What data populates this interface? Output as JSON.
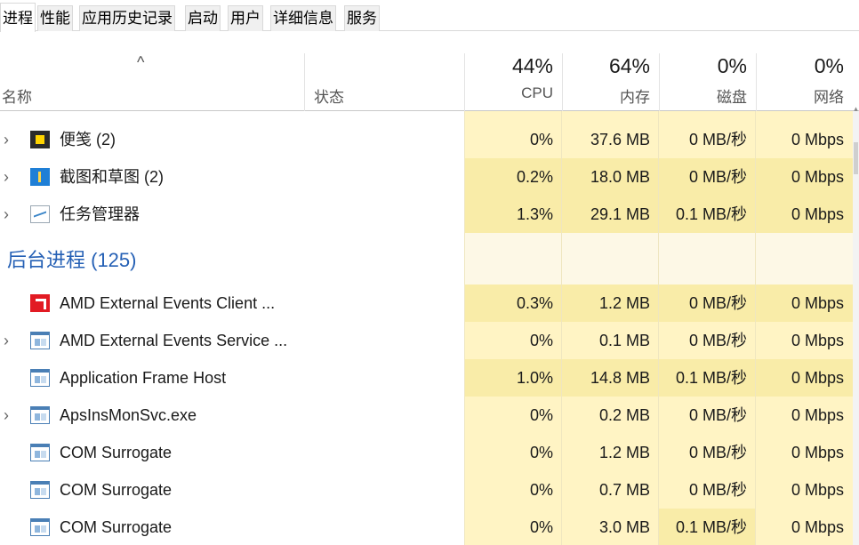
{
  "tabs": [
    {
      "label": "进程",
      "active": true
    },
    {
      "label": "性能",
      "active": false
    },
    {
      "label": "应用历史记录",
      "active": false
    },
    {
      "label": "启动",
      "active": false
    },
    {
      "label": "用户",
      "active": false
    },
    {
      "label": "详细信息",
      "active": false
    },
    {
      "label": "服务",
      "active": false
    }
  ],
  "header": {
    "sort_indicator": "^",
    "name_label": "名称",
    "status_label": "状态",
    "cpu": {
      "pct": "44%",
      "label": "CPU"
    },
    "memory": {
      "pct": "64%",
      "label": "内存"
    },
    "disk": {
      "pct": "0%",
      "label": "磁盘"
    },
    "network": {
      "pct": "0%",
      "label": "网络"
    }
  },
  "apps": [
    {
      "name": "便笺 (2)",
      "icon": "sticky-notes-icon",
      "expandable": true,
      "cpu": "0%",
      "memory": "37.6 MB",
      "disk": "0 MB/秒",
      "network": "0 Mbps"
    },
    {
      "name": "截图和草图 (2)",
      "icon": "snip-sketch-icon",
      "expandable": true,
      "cpu": "0.2%",
      "memory": "18.0 MB",
      "disk": "0 MB/秒",
      "network": "0 Mbps"
    },
    {
      "name": "任务管理器",
      "icon": "task-manager-icon",
      "expandable": true,
      "cpu": "1.3%",
      "memory": "29.1 MB",
      "disk": "0.1 MB/秒",
      "network": "0 Mbps"
    }
  ],
  "background_group": {
    "title": "后台进程 (125)"
  },
  "background": [
    {
      "name": "AMD External Events Client ...",
      "icon": "amd-icon",
      "expandable": false,
      "cpu": "0.3%",
      "memory": "1.2 MB",
      "disk": "0 MB/秒",
      "network": "0 Mbps"
    },
    {
      "name": "AMD External Events Service ...",
      "icon": "window-app-icon",
      "expandable": true,
      "cpu": "0%",
      "memory": "0.1 MB",
      "disk": "0 MB/秒",
      "network": "0 Mbps"
    },
    {
      "name": "Application Frame Host",
      "icon": "window-app-icon",
      "expandable": false,
      "cpu": "1.0%",
      "memory": "14.8 MB",
      "disk": "0.1 MB/秒",
      "network": "0 Mbps"
    },
    {
      "name": "ApsInsMonSvc.exe",
      "icon": "window-app-icon",
      "expandable": true,
      "cpu": "0%",
      "memory": "0.2 MB",
      "disk": "0 MB/秒",
      "network": "0 Mbps"
    },
    {
      "name": "COM Surrogate",
      "icon": "window-app-icon",
      "expandable": false,
      "cpu": "0%",
      "memory": "1.2 MB",
      "disk": "0 MB/秒",
      "network": "0 Mbps"
    },
    {
      "name": "COM Surrogate",
      "icon": "window-app-icon",
      "expandable": false,
      "cpu": "0%",
      "memory": "0.7 MB",
      "disk": "0 MB/秒",
      "network": "0 Mbps"
    },
    {
      "name": "COM Surrogate",
      "icon": "window-app-icon",
      "expandable": false,
      "cpu": "0%",
      "memory": "3.0 MB",
      "disk": "0.1 MB/秒",
      "network": "0 Mbps"
    }
  ],
  "colors": {
    "heat_low": "#fff4c4",
    "heat_mid": "#f9eca8",
    "group_bg": "#fdf8e6",
    "group_title": "#2560b5"
  }
}
